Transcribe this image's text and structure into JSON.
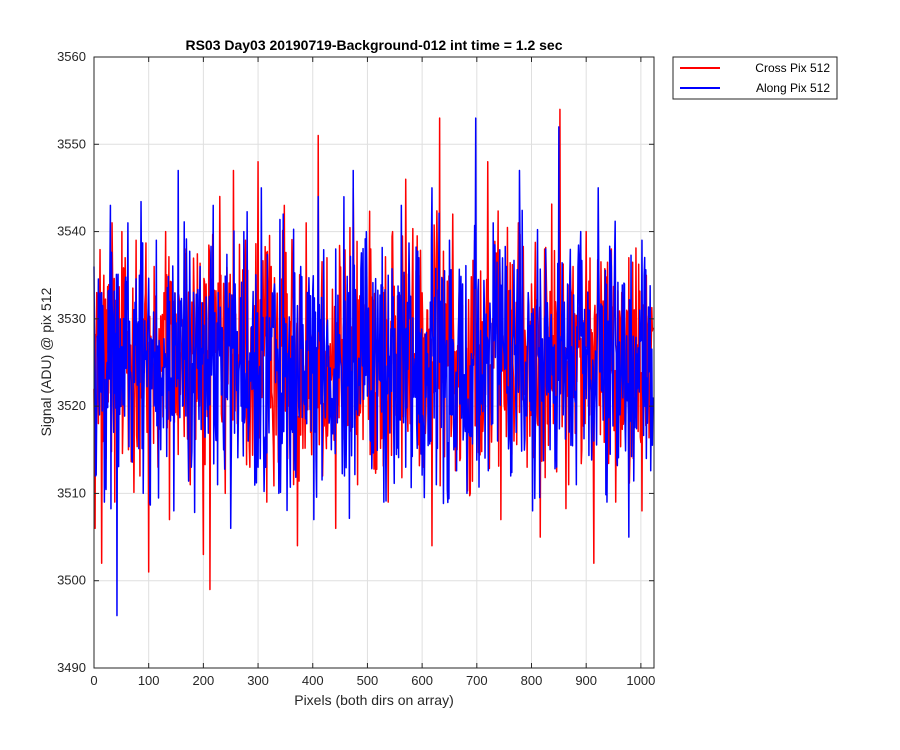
{
  "chart_data": {
    "type": "line",
    "title": "RS03 Day03 20190719-Background-012 int time = 1.2 sec",
    "xlabel": "Pixels (both dirs on array)",
    "ylabel": "Signal (ADU) @ pix 512",
    "xlim": [
      0,
      1024
    ],
    "ylim": [
      3490,
      3560
    ],
    "xticks": [
      0,
      100,
      200,
      300,
      400,
      500,
      600,
      700,
      800,
      900,
      1000
    ],
    "yticks": [
      3490,
      3500,
      3510,
      3520,
      3530,
      3540,
      3550,
      3560
    ],
    "grid": true,
    "legend_position": "outside-top-right",
    "series": [
      {
        "name": "Cross Pix 512",
        "color": "#ff0000",
        "mean": 3526,
        "x": [
          0,
          2,
          5,
          8,
          10,
          14,
          18,
          22,
          28,
          33,
          38,
          44,
          50,
          57,
          63,
          70,
          77,
          84,
          90,
          97,
          100,
          104,
          110,
          117,
          124,
          131,
          138,
          145,
          152,
          160,
          168,
          176,
          184,
          192,
          200,
          205,
          212,
          218,
          225,
          232,
          240,
          248,
          255,
          262,
          270,
          277,
          285,
          292,
          300,
          308,
          316,
          324,
          332,
          340,
          348,
          356,
          364,
          372,
          380,
          388,
          396,
          404,
          410,
          418,
          426,
          434,
          442,
          450,
          458,
          466,
          474,
          482,
          490,
          498,
          506,
          514,
          522,
          530,
          538,
          546,
          554,
          562,
          570,
          578,
          586,
          594,
          602,
          610,
          618,
          626,
          632,
          640,
          648,
          656,
          664,
          672,
          680,
          688,
          696,
          704,
          712,
          720,
          728,
          736,
          744,
          752,
          760,
          768,
          776,
          784,
          792,
          800,
          808,
          816,
          824,
          832,
          840,
          848,
          852,
          860,
          868,
          876,
          884,
          892,
          900,
          908,
          914,
          922,
          930,
          938,
          946,
          954,
          962,
          970,
          978,
          986,
          994,
          1002,
          1010,
          1016,
          1022
        ],
        "y": [
          3522,
          3506,
          3533,
          3518,
          3529,
          3502,
          3535,
          3514,
          3527,
          3541,
          3509,
          3531,
          3520,
          3537,
          3515,
          3525,
          3539,
          3512,
          3530,
          3517,
          3501,
          3528,
          3536,
          3513,
          3524,
          3540,
          3507,
          3532,
          3519,
          3526,
          3538,
          3511,
          3529,
          3521,
          3503,
          3534,
          3499,
          3527,
          3516,
          3535,
          3510,
          3530,
          3547,
          3518,
          3525,
          3539,
          3513,
          3531,
          3548,
          3522,
          3509,
          3536,
          3527,
          3514,
          3543,
          3520,
          3532,
          3504,
          3529,
          3541,
          3517,
          3525,
          3551,
          3512,
          3537,
          3523,
          3506,
          3534,
          3528,
          3519,
          3545,
          3511,
          3530,
          3524,
          3538,
          3516,
          3527,
          3533,
          3509,
          3540,
          3521,
          3529,
          3546,
          3518,
          3526,
          3535,
          3513,
          3531,
          3504,
          3537,
          3553,
          3520,
          3528,
          3542,
          3515,
          3533,
          3524,
          3510,
          3539,
          3527,
          3519,
          3548,
          3522,
          3530,
          3507,
          3536,
          3525,
          3516,
          3541,
          3529,
          3513,
          3534,
          3521,
          3505,
          3538,
          3527,
          3518,
          3532,
          3554,
          3524,
          3511,
          3536,
          3528,
          3515,
          3540,
          3522,
          3502,
          3533,
          3526,
          3519,
          3538,
          3509,
          3530,
          3524,
          3537,
          3514,
          3527,
          3508,
          3535,
          3520,
          3529
        ]
      },
      {
        "name": "Along Pix 512",
        "color": "#0000ff",
        "mean": 3525,
        "x": [
          0,
          3,
          6,
          10,
          14,
          19,
          24,
          30,
          36,
          42,
          48,
          55,
          62,
          69,
          76,
          83,
          90,
          98,
          106,
          114,
          122,
          130,
          138,
          146,
          154,
          162,
          170,
          178,
          186,
          194,
          202,
          210,
          218,
          226,
          234,
          242,
          250,
          258,
          266,
          274,
          282,
          290,
          298,
          306,
          314,
          322,
          330,
          338,
          346,
          354,
          362,
          370,
          378,
          386,
          394,
          402,
          410,
          418,
          426,
          434,
          442,
          450,
          458,
          466,
          474,
          482,
          490,
          498,
          506,
          514,
          522,
          530,
          538,
          546,
          554,
          562,
          570,
          578,
          586,
          594,
          602,
          610,
          618,
          626,
          634,
          642,
          650,
          658,
          666,
          674,
          682,
          690,
          698,
          706,
          714,
          722,
          730,
          738,
          746,
          754,
          762,
          770,
          778,
          786,
          794,
          802,
          810,
          818,
          826,
          834,
          842,
          850,
          858,
          866,
          874,
          882,
          890,
          898,
          906,
          914,
          922,
          930,
          938,
          946,
          954,
          962,
          970,
          978,
          986,
          994,
          1002,
          1010,
          1016,
          1022
        ],
        "y": [
          3536,
          3512,
          3528,
          3519,
          3533,
          3509,
          3525,
          3543,
          3517,
          3496,
          3530,
          3521,
          3541,
          3514,
          3527,
          3535,
          3510,
          3529,
          3522,
          3539,
          3515,
          3526,
          3532,
          3508,
          3547,
          3520,
          3531,
          3513,
          3527,
          3536,
          3518,
          3524,
          3543,
          3511,
          3529,
          3521,
          3506,
          3534,
          3525,
          3540,
          3516,
          3530,
          3522,
          3545,
          3513,
          3527,
          3534,
          3510,
          3542,
          3520,
          3528,
          3517,
          3536,
          3524,
          3531,
          3507,
          3544,
          3521,
          3529,
          3515,
          3538,
          3526,
          3512,
          3533,
          3547,
          3519,
          3527,
          3540,
          3516,
          3531,
          3523,
          3509,
          3535,
          3528,
          3520,
          3543,
          3513,
          3530,
          3524,
          3537,
          3518,
          3526,
          3545,
          3511,
          3532,
          3521,
          3539,
          3515,
          3528,
          3534,
          3510,
          3526,
          3553,
          3519,
          3531,
          3524,
          3541,
          3516,
          3529,
          3536,
          3512,
          3527,
          3547,
          3520,
          3533,
          3508,
          3530,
          3524,
          3538,
          3515,
          3527,
          3552,
          3519,
          3534,
          3525,
          3511,
          3540,
          3522,
          3531,
          3516,
          3545,
          3524,
          3509,
          3536,
          3527,
          3519,
          3534,
          3505,
          3528,
          3522,
          3539,
          3514,
          3526,
          3521
        ]
      }
    ]
  }
}
